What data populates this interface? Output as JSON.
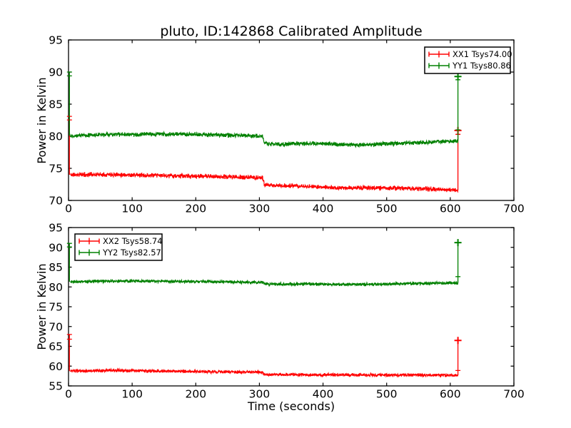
{
  "figure": {
    "title": "pluto, ID:142868 Calibrated Amplitude",
    "background_color": "#ffffff",
    "axis_color": "#000000"
  },
  "colors": {
    "xx_series": "#ff0000",
    "yy_series": "#008000",
    "axis": "#000000",
    "legend_background": "#ffffff"
  },
  "chart_data": [
    {
      "type": "line",
      "title": "pluto, ID:142868 Calibrated Amplitude",
      "xlabel": "",
      "ylabel": "Power in Kelvin",
      "xlim": [
        0,
        700
      ],
      "ylim": [
        70,
        95
      ],
      "xticks": [
        0,
        100,
        200,
        300,
        400,
        500,
        600,
        700
      ],
      "yticks": [
        70,
        75,
        80,
        85,
        90,
        95
      ],
      "grid": false,
      "legend": {
        "position": "top-right",
        "entries": [
          {
            "label": "XX1 Tsys74.00",
            "color": "#ff0000"
          },
          {
            "label": "YY1 Tsys80.86",
            "color": "#008000"
          }
        ]
      },
      "series": [
        {
          "name": "XX1",
          "color": "#ff0000",
          "tsys": 74.0,
          "noise_amplitude": 0.42,
          "seed": 11,
          "keypoints": [
            [
              3,
              74.0
            ],
            [
              40,
              74.05
            ],
            [
              80,
              74.05
            ],
            [
              100,
              73.95
            ],
            [
              140,
              73.9
            ],
            [
              180,
              73.8
            ],
            [
              220,
              73.75
            ],
            [
              260,
              73.65
            ],
            [
              300,
              73.55
            ],
            [
              305,
              73.5
            ],
            [
              308,
              72.45
            ],
            [
              315,
              72.35
            ],
            [
              340,
              72.3
            ],
            [
              380,
              72.15
            ],
            [
              420,
              72.0
            ],
            [
              450,
              71.95
            ],
            [
              490,
              71.95
            ],
            [
              520,
              71.9
            ],
            [
              550,
              71.85
            ],
            [
              580,
              71.7
            ],
            [
              605,
              71.6
            ],
            [
              612,
              71.55
            ]
          ],
          "spikes": [
            {
              "x": 1.5,
              "top": 83.1,
              "caps": [
                83.1,
                82.55
              ],
              "bold": false
            },
            {
              "x": 612,
              "top": 80.9,
              "caps": [
                80.3
              ],
              "bold": true
            }
          ]
        },
        {
          "name": "YY1",
          "color": "#008000",
          "tsys": 80.86,
          "noise_amplitude": 0.4,
          "seed": 22,
          "keypoints": [
            [
              3,
              80.1
            ],
            [
              40,
              80.2
            ],
            [
              70,
              80.3
            ],
            [
              100,
              80.25
            ],
            [
              130,
              80.3
            ],
            [
              160,
              80.35
            ],
            [
              190,
              80.3
            ],
            [
              220,
              80.25
            ],
            [
              250,
              80.15
            ],
            [
              280,
              80.1
            ],
            [
              305,
              80.0
            ],
            [
              308,
              78.95
            ],
            [
              315,
              78.8
            ],
            [
              340,
              78.75
            ],
            [
              370,
              78.9
            ],
            [
              400,
              78.85
            ],
            [
              430,
              78.7
            ],
            [
              460,
              78.65
            ],
            [
              490,
              78.8
            ],
            [
              520,
              78.9
            ],
            [
              550,
              79.0
            ],
            [
              580,
              79.15
            ],
            [
              605,
              79.25
            ],
            [
              612,
              79.3
            ]
          ],
          "spikes": [
            {
              "x": 1.5,
              "top": 90.0,
              "caps": [
                90.0,
                89.4
              ],
              "bold": false
            },
            {
              "x": 612,
              "top": 89.3,
              "caps": [
                88.8,
                81.0
              ],
              "bold": true
            }
          ]
        }
      ]
    },
    {
      "type": "line",
      "title": "",
      "xlabel": "Time (seconds)",
      "ylabel": "Power in Kelvin",
      "xlim": [
        0,
        700
      ],
      "ylim": [
        55,
        95
      ],
      "xticks": [
        0,
        100,
        200,
        300,
        400,
        500,
        600,
        700
      ],
      "yticks": [
        55,
        60,
        65,
        70,
        75,
        80,
        85,
        90,
        95
      ],
      "grid": false,
      "legend": {
        "position": "top-left",
        "entries": [
          {
            "label": "XX2 Tsys58.74",
            "color": "#ff0000"
          },
          {
            "label": "YY2 Tsys82.57",
            "color": "#008000"
          }
        ]
      },
      "series": [
        {
          "name": "XX2",
          "color": "#ff0000",
          "tsys": 58.74,
          "noise_amplitude": 0.5,
          "seed": 33,
          "keypoints": [
            [
              3,
              58.75
            ],
            [
              40,
              58.8
            ],
            [
              70,
              58.9
            ],
            [
              100,
              58.85
            ],
            [
              140,
              58.75
            ],
            [
              180,
              58.7
            ],
            [
              220,
              58.6
            ],
            [
              260,
              58.55
            ],
            [
              300,
              58.45
            ],
            [
              305,
              58.4
            ],
            [
              308,
              57.95
            ],
            [
              315,
              57.85
            ],
            [
              350,
              57.85
            ],
            [
              400,
              57.8
            ],
            [
              450,
              57.75
            ],
            [
              500,
              57.75
            ],
            [
              550,
              57.75
            ],
            [
              600,
              57.7
            ],
            [
              612,
              57.7
            ]
          ],
          "spikes": [
            {
              "x": 1.5,
              "top": 68.0,
              "caps": [
                68.0,
                66.8
              ],
              "bold": false
            },
            {
              "x": 612,
              "top": 66.5,
              "caps": [
                58.9
              ],
              "bold": true
            }
          ]
        },
        {
          "name": "YY2",
          "color": "#008000",
          "tsys": 82.57,
          "noise_amplitude": 0.48,
          "seed": 44,
          "keypoints": [
            [
              3,
              81.3
            ],
            [
              40,
              81.4
            ],
            [
              70,
              81.5
            ],
            [
              100,
              81.5
            ],
            [
              140,
              81.45
            ],
            [
              180,
              81.4
            ],
            [
              220,
              81.35
            ],
            [
              260,
              81.25
            ],
            [
              300,
              81.15
            ],
            [
              305,
              81.1
            ],
            [
              308,
              80.85
            ],
            [
              315,
              80.75
            ],
            [
              340,
              80.7
            ],
            [
              380,
              80.75
            ],
            [
              420,
              80.65
            ],
            [
              450,
              80.6
            ],
            [
              490,
              80.7
            ],
            [
              520,
              80.8
            ],
            [
              560,
              80.9
            ],
            [
              600,
              81.0
            ],
            [
              612,
              81.0
            ]
          ],
          "spikes": [
            {
              "x": 1.5,
              "top": 91.0,
              "caps": [
                91.0,
                90.1
              ],
              "bold": false
            },
            {
              "x": 612,
              "top": 91.2,
              "caps": [
                82.6
              ],
              "bold": true
            }
          ]
        }
      ]
    }
  ]
}
